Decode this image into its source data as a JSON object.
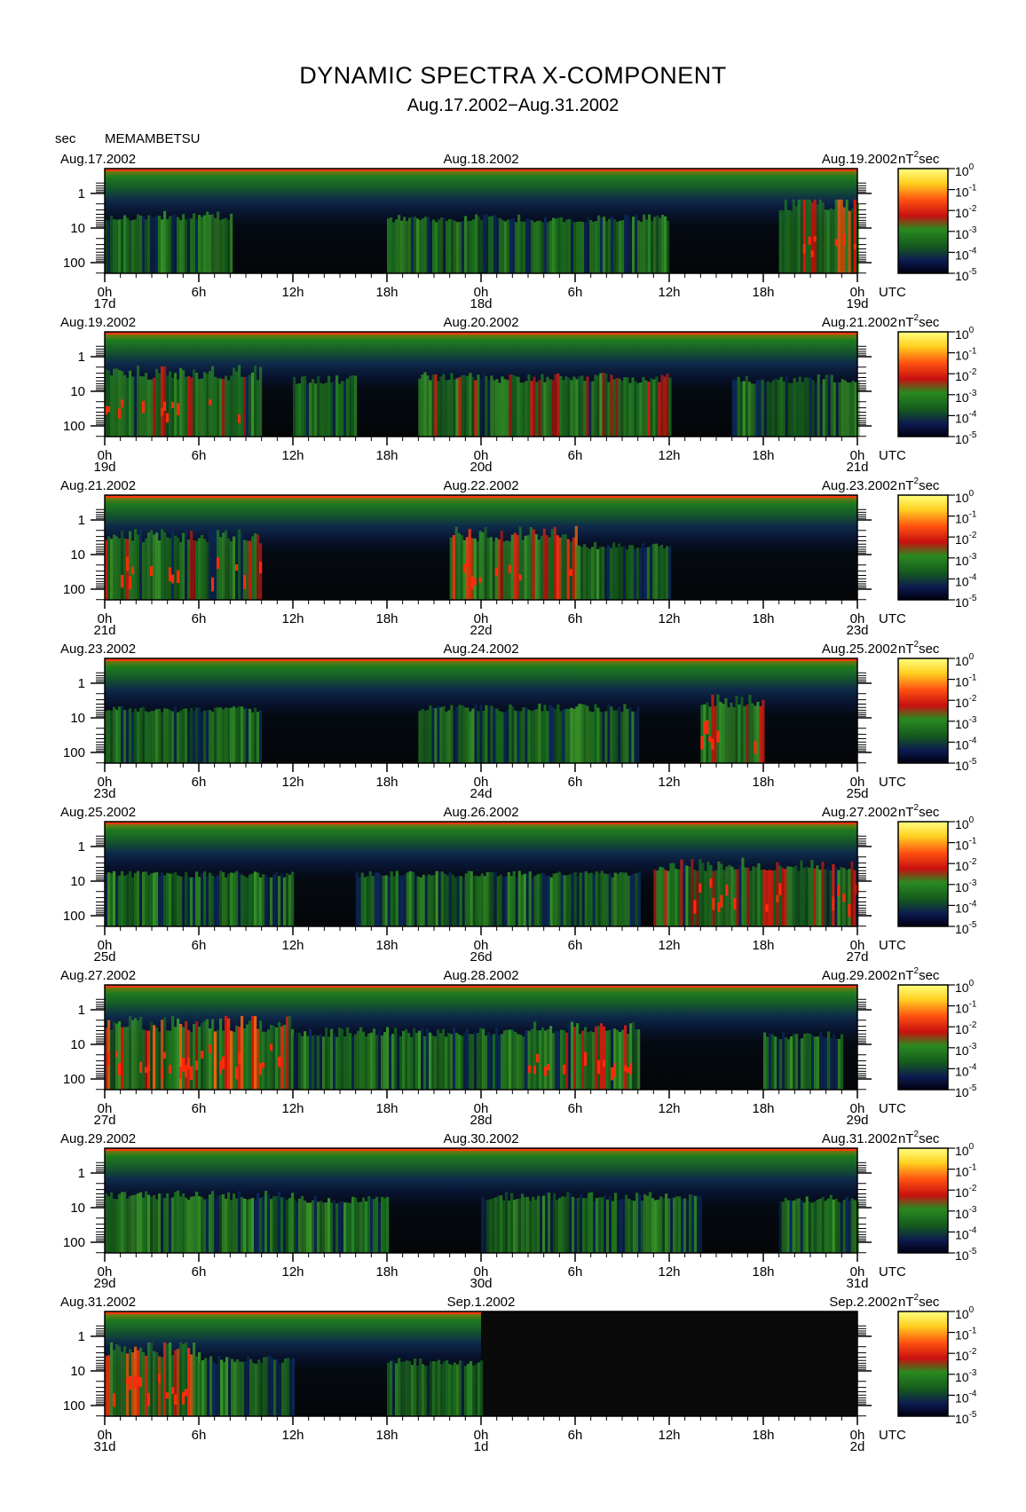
{
  "title": "DYNAMIC SPECTRA X-COMPONENT",
  "subtitle": "Aug.17.2002−Aug.31.2002",
  "y_unit": "sec",
  "station": "MEMAMBETSU",
  "colorbar_unit": "nT²sec",
  "utc_label": "UTC",
  "colors": {
    "background": "#000000",
    "low": "#0a1a4a",
    "mid": "#1f7a1f",
    "high": "#e81a0a",
    "top": "#ffff40"
  },
  "chart_data": {
    "type": "heatmap",
    "y_axis": {
      "label": "sec",
      "scale": "log",
      "ticks": [
        "1",
        "10",
        "100"
      ],
      "range": [
        0.5,
        200
      ]
    },
    "colorbar": {
      "scale": "log",
      "range": [
        1e-05,
        1
      ],
      "tick_exponents": [
        "0",
        "-1",
        "-2",
        "-3",
        "-4",
        "-5"
      ]
    },
    "x_tick_labels": [
      "0h",
      "6h",
      "12h",
      "18h",
      "0h",
      "6h",
      "12h",
      "18h",
      "0h"
    ],
    "panels": [
      {
        "left_date": "Aug.17.2002",
        "mid_date": "Aug.18.2002",
        "right_date": "Aug.19.2002",
        "day_labels": [
          "17d",
          "18d",
          "19d"
        ],
        "data_coverage_hours": 48,
        "activity": [
          {
            "start_h": 0,
            "end_h": 8,
            "level": 0.55
          },
          {
            "start_h": 18,
            "end_h": 36,
            "level": 0.45
          },
          {
            "start_h": 43,
            "end_h": 48,
            "level": 0.95
          }
        ]
      },
      {
        "left_date": "Aug.19.2002",
        "mid_date": "Aug.20.2002",
        "right_date": "Aug.21.2002",
        "day_labels": [
          "19d",
          "20d",
          "21d"
        ],
        "data_coverage_hours": 48,
        "activity": [
          {
            "start_h": 0,
            "end_h": 10,
            "level": 0.75
          },
          {
            "start_h": 12,
            "end_h": 16,
            "level": 0.55
          },
          {
            "start_h": 20,
            "end_h": 36,
            "level": 0.6
          },
          {
            "start_h": 40,
            "end_h": 48,
            "level": 0.55
          }
        ]
      },
      {
        "left_date": "Aug.21.2002",
        "mid_date": "Aug.22.2002",
        "right_date": "Aug.23.2002",
        "day_labels": [
          "21d",
          "22d",
          "23d"
        ],
        "data_coverage_hours": 48,
        "activity": [
          {
            "start_h": 0,
            "end_h": 10,
            "level": 0.75
          },
          {
            "start_h": 22,
            "end_h": 30,
            "level": 0.8
          },
          {
            "start_h": 30,
            "end_h": 36,
            "level": 0.4
          }
        ]
      },
      {
        "left_date": "Aug.23.2002",
        "mid_date": "Aug.24.2002",
        "right_date": "Aug.25.2002",
        "day_labels": [
          "23d",
          "24d",
          "25d"
        ],
        "data_coverage_hours": 48,
        "activity": [
          {
            "start_h": 0,
            "end_h": 10,
            "level": 0.4
          },
          {
            "start_h": 20,
            "end_h": 34,
            "level": 0.45
          },
          {
            "start_h": 38,
            "end_h": 42,
            "level": 0.7
          }
        ]
      },
      {
        "left_date": "Aug.25.2002",
        "mid_date": "Aug.26.2002",
        "right_date": "Aug.27.2002",
        "day_labels": [
          "25d",
          "26d",
          "27d"
        ],
        "data_coverage_hours": 48,
        "activity": [
          {
            "start_h": 0,
            "end_h": 12,
            "level": 0.3
          },
          {
            "start_h": 16,
            "end_h": 34,
            "level": 0.3
          },
          {
            "start_h": 35,
            "end_h": 48,
            "level": 0.7
          }
        ]
      },
      {
        "left_date": "Aug.27.2002",
        "mid_date": "Aug.28.2002",
        "right_date": "Aug.29.2002",
        "day_labels": [
          "27d",
          "28d",
          "29d"
        ],
        "data_coverage_hours": 48,
        "activity": [
          {
            "start_h": 0,
            "end_h": 12,
            "level": 0.8
          },
          {
            "start_h": 12,
            "end_h": 27,
            "level": 0.55
          },
          {
            "start_h": 27,
            "end_h": 34,
            "level": 0.7
          },
          {
            "start_h": 42,
            "end_h": 47,
            "level": 0.4
          }
        ]
      },
      {
        "left_date": "Aug.29.2002",
        "mid_date": "Aug.30.2002",
        "right_date": "Aug.31.2002",
        "day_labels": [
          "29d",
          "30d",
          "31d"
        ],
        "data_coverage_hours": 48,
        "activity": [
          {
            "start_h": 0,
            "end_h": 12,
            "level": 0.55
          },
          {
            "start_h": 12,
            "end_h": 18,
            "level": 0.35
          },
          {
            "start_h": 24,
            "end_h": 38,
            "level": 0.5
          },
          {
            "start_h": 43,
            "end_h": 48,
            "level": 0.4
          }
        ]
      },
      {
        "left_date": "Aug.31.2002",
        "mid_date": "Sep.1.2002",
        "right_date": "Sep.2.2002",
        "day_labels": [
          "31d",
          "1d",
          "2d"
        ],
        "data_coverage_hours": 24,
        "activity": [
          {
            "start_h": 0,
            "end_h": 6,
            "level": 0.85
          },
          {
            "start_h": 6,
            "end_h": 12,
            "level": 0.5
          },
          {
            "start_h": 18,
            "end_h": 24,
            "level": 0.4
          }
        ]
      }
    ]
  }
}
